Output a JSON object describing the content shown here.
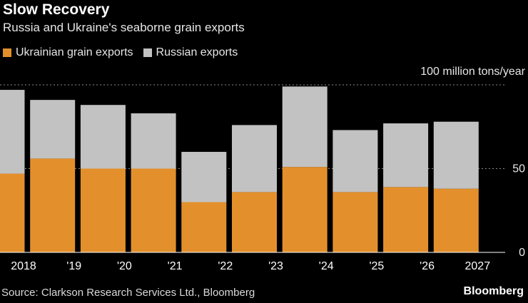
{
  "title": "Slow Recovery",
  "subtitle": "Russia and Ukraine's seaborne grain exports",
  "legend": [
    {
      "label": "Ukrainian grain exports",
      "color": "#e3902c"
    },
    {
      "label": "Russian exports",
      "color": "#c2c2c2"
    }
  ],
  "source": "Source: Clarkson Research Services Ltd., Bloomberg",
  "brand": "Bloomberg",
  "chart_data": {
    "type": "bar",
    "stacked": true,
    "categories": [
      "2018",
      "'19",
      "'20",
      "'21",
      "'22",
      "'23",
      "'24",
      "'25",
      "'26",
      "2027"
    ],
    "series": [
      {
        "name": "Ukrainian grain exports",
        "color": "#e3902c",
        "values": [
          47,
          56,
          50,
          50,
          30,
          36,
          51,
          36,
          39,
          38
        ]
      },
      {
        "name": "Russian exports",
        "color": "#c2c2c2",
        "values": [
          50,
          35,
          38,
          33,
          30,
          40,
          48,
          37,
          38,
          40
        ]
      }
    ],
    "ylim": [
      0,
      100
    ],
    "yticks": [
      "0",
      "50",
      "100 million tons/year"
    ],
    "ytick_values": [
      0,
      50,
      100
    ],
    "grid": true
  }
}
